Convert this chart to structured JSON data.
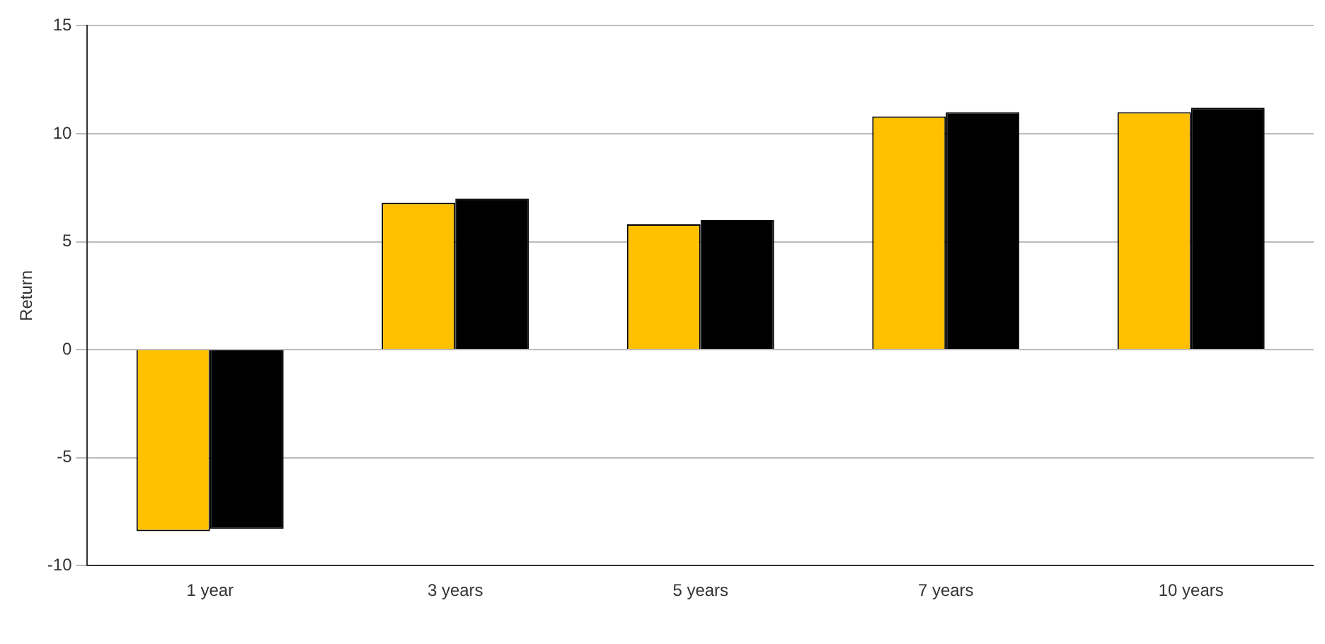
{
  "chart_data": {
    "type": "bar",
    "ylabel": "Return",
    "categories": [
      "1 year",
      "3 years",
      "5 years",
      "7 years",
      "10 years"
    ],
    "series": [
      {
        "color": "#ffc000",
        "values": [
          -8.4,
          6.8,
          5.8,
          10.8,
          11.0
        ]
      },
      {
        "color": "#000000",
        "values": [
          -8.3,
          7.0,
          6.0,
          11.0,
          11.2
        ]
      }
    ],
    "ylim": [
      -10,
      15
    ],
    "yticks": [
      -10,
      -5,
      0,
      5,
      10,
      15
    ],
    "grid": "y"
  }
}
